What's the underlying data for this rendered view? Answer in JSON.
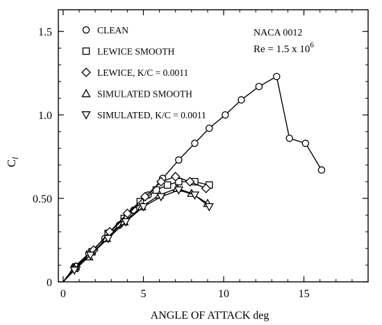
{
  "chart_data": {
    "type": "scatter",
    "xlabel": "ANGLE OF ATTACK deg",
    "ylabel_main": "C",
    "ylabel_sub": "l",
    "xlim": [
      -0.3,
      19
    ],
    "ylim": [
      0,
      1.63
    ],
    "x_ticks": [
      0,
      5,
      10,
      15
    ],
    "x_tick_labels": [
      "0",
      "5",
      "10",
      "15"
    ],
    "y_ticks": [
      0,
      0.5,
      1.0,
      1.5
    ],
    "y_tick_labels": [
      "0",
      "0.50",
      "1.0",
      "1.5"
    ],
    "grid": false,
    "legend_position": "top-left",
    "annotation": {
      "airfoil": "NACA 0012",
      "re_prefix": "Re = 1.5 x 10",
      "re_exponent": "6"
    },
    "series": [
      {
        "name": "CLEAN",
        "marker": "circle",
        "x": [
          0.7,
          1.6,
          2.6,
          3.5,
          4.4,
          5.3,
          6.2,
          7.2,
          8.2,
          9.1,
          10.1,
          11.1,
          12.2,
          13.3,
          14.1,
          15.1,
          16.1
        ],
        "y": [
          0.09,
          0.17,
          0.26,
          0.34,
          0.43,
          0.52,
          0.62,
          0.73,
          0.83,
          0.92,
          1.0,
          1.09,
          1.17,
          1.23,
          0.86,
          0.83,
          0.67
        ]
      },
      {
        "name": "LEWICE SMOOTH",
        "marker": "square",
        "x": [
          0.8,
          1.8,
          2.8,
          3.8,
          4.8,
          5.8,
          6.5,
          7.2,
          8.2,
          9.1
        ],
        "y": [
          0.09,
          0.18,
          0.29,
          0.38,
          0.48,
          0.55,
          0.58,
          0.6,
          0.6,
          0.58
        ]
      },
      {
        "name": "LEWICE, K/C = 0.0011",
        "marker": "diamond",
        "x": [
          0.8,
          1.9,
          2.9,
          4.0,
          5.1,
          6.1,
          7.0,
          7.9,
          8.9
        ],
        "y": [
          0.09,
          0.19,
          0.3,
          0.41,
          0.51,
          0.6,
          0.63,
          0.6,
          0.56
        ]
      },
      {
        "name": "SIMULATED SMOOTH",
        "marker": "triangle-up",
        "x": [
          0.7,
          1.6,
          2.7,
          3.8,
          4.9,
          6.0,
          7.1,
          8.0,
          9.0
        ],
        "y": [
          0.08,
          0.15,
          0.26,
          0.36,
          0.45,
          0.52,
          0.56,
          0.53,
          0.47
        ]
      },
      {
        "name": "SIMULATED, K/C = 0.0011",
        "marker": "triangle-down",
        "x": [
          0.7,
          1.7,
          2.8,
          3.9,
          5.0,
          6.1,
          7.2,
          8.2,
          9.1
        ],
        "y": [
          0.07,
          0.16,
          0.26,
          0.36,
          0.45,
          0.51,
          0.55,
          0.52,
          0.45
        ]
      }
    ]
  }
}
